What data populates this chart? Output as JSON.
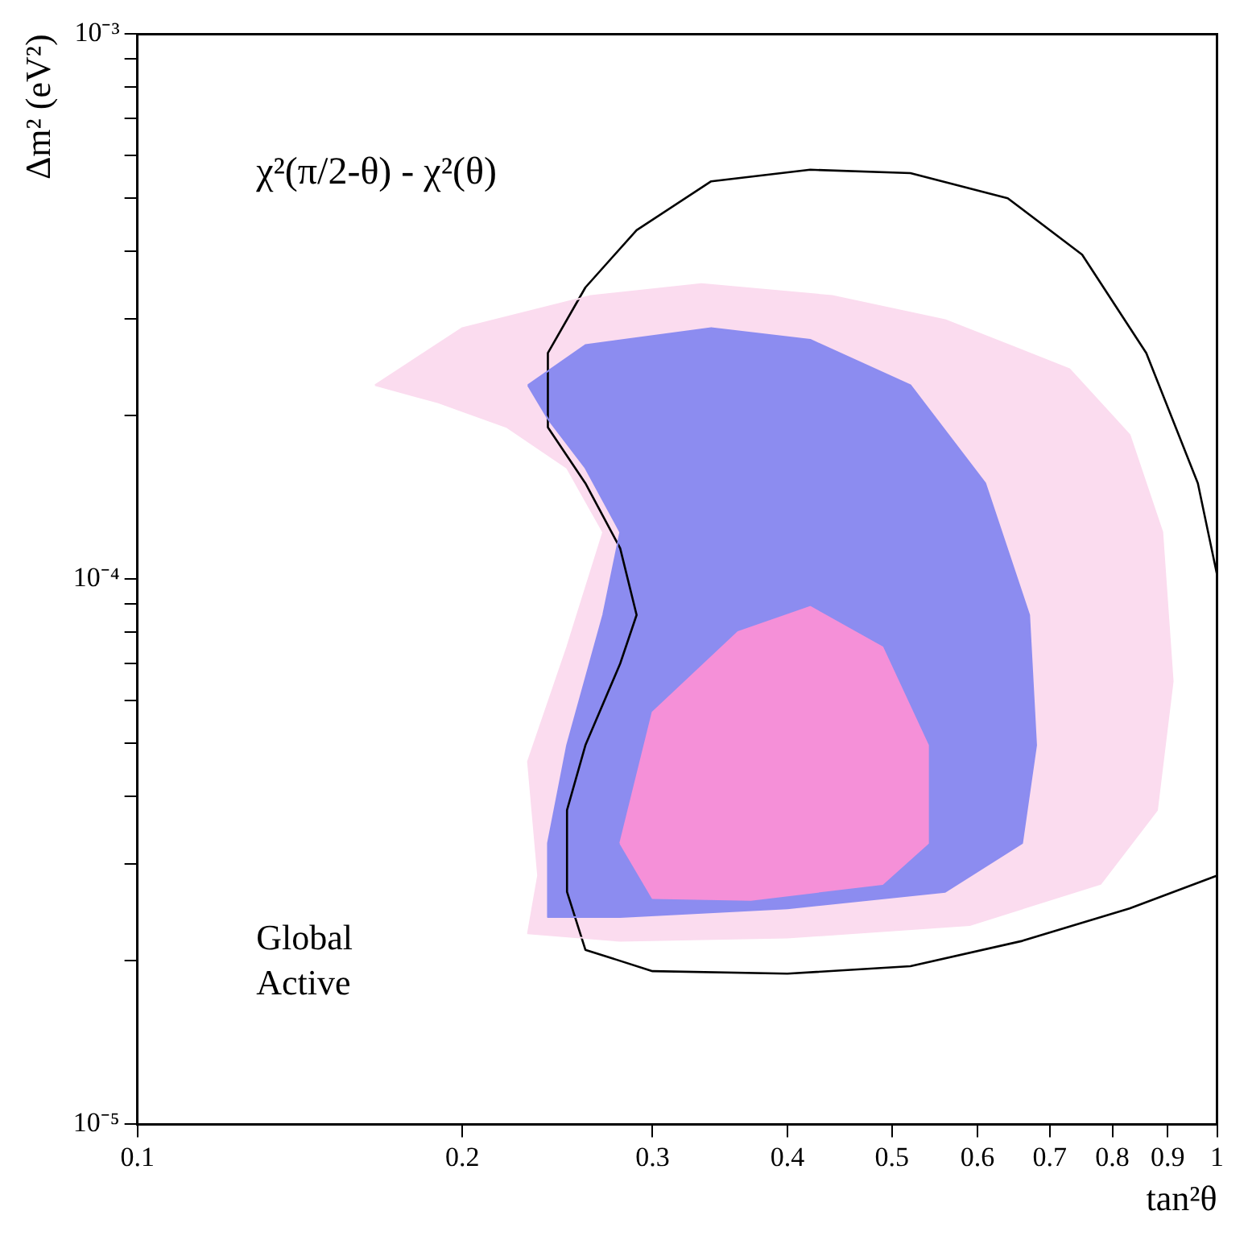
{
  "chart_data": {
    "type": "area",
    "xlabel": "tan²θ",
    "ylabel": "Δm² (eV²)",
    "annotations": [
      "χ²(π/2-θ) - χ²(θ)",
      "Global Active"
    ],
    "log": "xy",
    "grid": false,
    "legend": false,
    "marker": "none",
    "xlim": [
      0.1,
      1
    ],
    "ylim": [
      1e-05,
      0.001
    ],
    "xticks": [
      0.1,
      0.2,
      0.3,
      0.4,
      0.5,
      0.6,
      0.7,
      0.8,
      0.9,
      1
    ],
    "yticks": [
      {
        "value": 1e-05,
        "label": "10⁻⁵"
      },
      {
        "value": 2e-05,
        "label": null
      },
      {
        "value": 3e-05,
        "label": null
      },
      {
        "value": 4e-05,
        "label": null
      },
      {
        "value": 5e-05,
        "label": null
      },
      {
        "value": 6e-05,
        "label": null
      },
      {
        "value": 7e-05,
        "label": null
      },
      {
        "value": 8e-05,
        "label": null
      },
      {
        "value": 9e-05,
        "label": null
      },
      {
        "value": 0.0001,
        "label": "10⁻⁴"
      },
      {
        "value": 0.0002,
        "label": null
      },
      {
        "value": 0.0003,
        "label": null
      },
      {
        "value": 0.0004,
        "label": null
      },
      {
        "value": 0.0005,
        "label": null
      },
      {
        "value": 0.0006,
        "label": null
      },
      {
        "value": 0.0007,
        "label": null
      },
      {
        "value": 0.0008,
        "label": null
      },
      {
        "value": 0.0009,
        "label": null
      },
      {
        "value": 0.001,
        "label": "10⁻³"
      }
    ],
    "series": [
      {
        "color": "#fbdcef",
        "x": [
          0.166,
          0.2,
          0.263,
          0.333,
          0.44,
          0.56,
          0.73,
          0.83,
          0.89,
          0.91,
          0.88,
          0.78,
          0.59,
          0.4,
          0.28,
          0.23,
          0.235,
          0.23,
          0.25,
          0.27,
          0.25,
          0.22,
          0.19,
          0.166
        ],
        "values": [
          0.000227,
          0.000289,
          0.000331,
          0.000348,
          0.000331,
          0.000299,
          0.000243,
          0.000184,
          0.000122,
          6.5e-05,
          3.77e-05,
          2.76e-05,
          2.32e-05,
          2.2e-05,
          2.17e-05,
          2.24e-05,
          2.86e-05,
          4.63e-05,
          7.5e-05,
          0.000122,
          0.00016,
          0.00019,
          0.000211,
          0.000227
        ]
      },
      {
        "color": "#8c8cf0",
        "x": [
          0.23,
          0.26,
          0.34,
          0.42,
          0.52,
          0.61,
          0.67,
          0.68,
          0.66,
          0.56,
          0.4,
          0.28,
          0.24,
          0.24,
          0.25,
          0.27,
          0.28,
          0.26,
          0.24,
          0.23
        ],
        "values": [
          0.000227,
          0.000269,
          0.000289,
          0.000275,
          0.000227,
          0.00015,
          8.6e-05,
          4.96e-05,
          3.28e-05,
          2.67e-05,
          2.49e-05,
          2.4e-05,
          2.4e-05,
          3.28e-05,
          4.96e-05,
          8.6e-05,
          0.000122,
          0.00016,
          0.000197,
          0.000227
        ]
      },
      {
        "color": "#f590d8",
        "x": [
          0.28,
          0.3,
          0.36,
          0.42,
          0.49,
          0.54,
          0.54,
          0.49,
          0.37,
          0.3,
          0.28
        ],
        "values": [
          3.28e-05,
          5.7e-05,
          8e-05,
          8.9e-05,
          7.5e-05,
          4.96e-05,
          3.28e-05,
          2.76e-05,
          2.58e-05,
          2.6e-05,
          3.28e-05
        ]
      },
      {
        "type": "line",
        "color": "#000000",
        "x": [
          1.0,
          0.96,
          0.86,
          0.75,
          0.64,
          0.52,
          0.42,
          0.34,
          0.29,
          0.26,
          0.24,
          0.24,
          0.26,
          0.28,
          0.29,
          0.28,
          0.26,
          0.25,
          0.25,
          0.26,
          0.3,
          0.4,
          0.52,
          0.66,
          0.83,
          1.0
        ],
        "values": [
          0.000102,
          0.00015,
          0.00026,
          0.000394,
          0.0005,
          0.000556,
          0.000564,
          0.000537,
          0.000437,
          0.000343,
          0.00026,
          0.00019,
          0.00015,
          0.000114,
          8.6e-05,
          7e-05,
          4.96e-05,
          3.77e-05,
          2.67e-05,
          2.09e-05,
          1.91e-05,
          1.89e-05,
          1.95e-05,
          2.17e-05,
          2.49e-05,
          2.86e-05
        ]
      }
    ]
  }
}
